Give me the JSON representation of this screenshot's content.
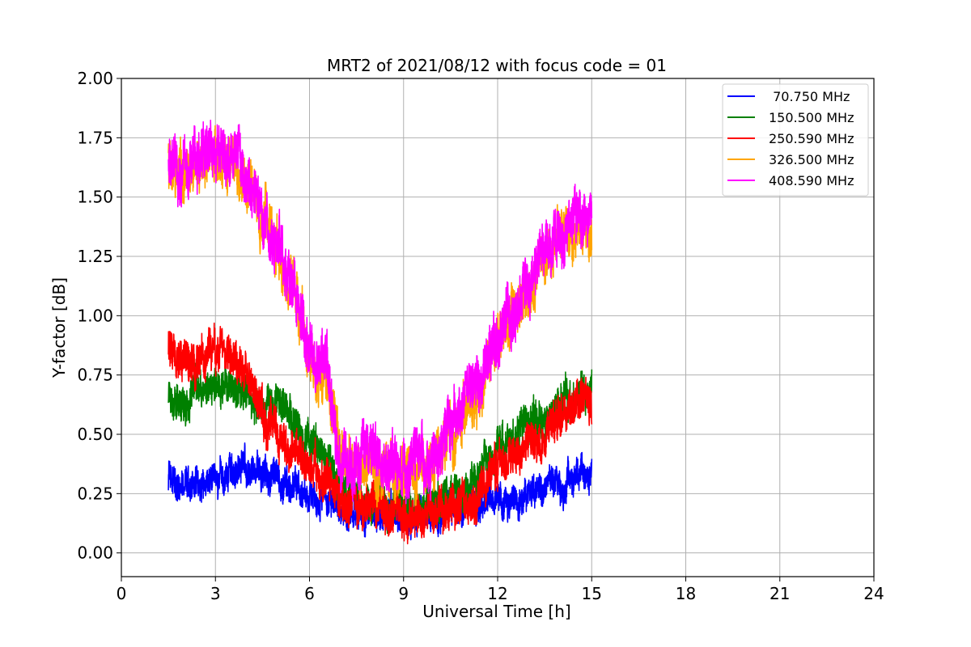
{
  "chart_data": {
    "type": "line",
    "title": "MRT2 of 2021/08/12 with focus code = 01",
    "xlabel": "Universal Time [h]",
    "ylabel": "Y-factor [dB]",
    "xlim": [
      0,
      24
    ],
    "ylim": [
      -0.1,
      2.0
    ],
    "x_ticks": [
      "0",
      "3",
      "6",
      "9",
      "12",
      "15",
      "18",
      "21",
      "24"
    ],
    "y_ticks": [
      "0.00",
      "0.25",
      "0.50",
      "0.75",
      "1.00",
      "1.25",
      "1.50",
      "1.75",
      "2.00"
    ],
    "grid": true,
    "legend_position": "top-right",
    "x_range_of_data": [
      1.5,
      15.0
    ],
    "series": [
      {
        "name": " 70.750 MHz",
        "color": "#0000ff",
        "x": [
          1.5,
          2.0,
          2.5,
          3.0,
          3.5,
          4.0,
          4.5,
          5.0,
          5.5,
          6.0,
          6.5,
          7.0,
          7.5,
          8.0,
          8.5,
          9.0,
          9.5,
          10.0,
          10.5,
          11.0,
          11.5,
          12.0,
          12.5,
          13.0,
          13.5,
          14.0,
          14.5,
          15.0
        ],
        "values": [
          0.3,
          0.29,
          0.3,
          0.32,
          0.34,
          0.35,
          0.33,
          0.3,
          0.27,
          0.25,
          0.23,
          0.2,
          0.17,
          0.16,
          0.15,
          0.16,
          0.17,
          0.17,
          0.18,
          0.19,
          0.2,
          0.22,
          0.24,
          0.26,
          0.28,
          0.29,
          0.31,
          0.34
        ],
        "noise": 0.07
      },
      {
        "name": "150.500 MHz",
        "color": "#008000",
        "x": [
          1.5,
          2.0,
          2.5,
          3.0,
          3.5,
          4.0,
          4.5,
          5.0,
          5.5,
          6.0,
          6.5,
          7.0,
          7.5,
          8.0,
          8.5,
          9.0,
          9.5,
          10.0,
          10.5,
          11.0,
          11.5,
          12.0,
          12.5,
          13.0,
          13.5,
          14.0,
          14.5,
          15.0
        ],
        "values": [
          0.62,
          0.6,
          0.66,
          0.7,
          0.72,
          0.68,
          0.65,
          0.63,
          0.58,
          0.45,
          0.38,
          0.26,
          0.22,
          0.22,
          0.2,
          0.19,
          0.19,
          0.2,
          0.22,
          0.24,
          0.35,
          0.46,
          0.5,
          0.54,
          0.57,
          0.6,
          0.64,
          0.66
        ],
        "noise": 0.08
      },
      {
        "name": "250.590 MHz",
        "color": "#ff0000",
        "x": [
          1.5,
          2.0,
          2.5,
          3.0,
          3.5,
          4.0,
          4.5,
          5.0,
          5.5,
          6.0,
          6.5,
          7.0,
          7.5,
          8.0,
          8.5,
          9.0,
          9.5,
          10.0,
          10.5,
          11.0,
          11.5,
          12.0,
          12.5,
          13.0,
          13.5,
          14.0,
          14.5,
          15.0
        ],
        "values": [
          0.86,
          0.84,
          0.82,
          0.86,
          0.85,
          0.75,
          0.6,
          0.48,
          0.42,
          0.34,
          0.32,
          0.24,
          0.2,
          0.19,
          0.18,
          0.16,
          0.14,
          0.17,
          0.2,
          0.22,
          0.26,
          0.34,
          0.42,
          0.48,
          0.52,
          0.58,
          0.62,
          0.66
        ],
        "noise": 0.09
      },
      {
        "name": "326.500 MHz",
        "color": "#ffa500",
        "x": [
          1.5,
          2.0,
          2.5,
          3.0,
          3.5,
          4.0,
          4.5,
          5.0,
          5.5,
          6.0,
          6.5,
          7.0,
          7.5,
          8.0,
          8.5,
          9.0,
          9.5,
          10.0,
          10.5,
          11.0,
          11.5,
          12.0,
          12.5,
          13.0,
          13.5,
          14.0,
          14.5,
          15.0
        ],
        "values": [
          1.64,
          1.6,
          1.62,
          1.68,
          1.66,
          1.55,
          1.42,
          1.25,
          1.12,
          0.8,
          0.78,
          0.4,
          0.38,
          0.4,
          0.35,
          0.32,
          0.35,
          0.4,
          0.5,
          0.6,
          0.7,
          0.9,
          1.02,
          1.12,
          1.22,
          1.3,
          1.34,
          1.38
        ],
        "noise": 0.11
      },
      {
        "name": "408.590 MHz",
        "color": "#ff00ff",
        "x": [
          1.5,
          2.0,
          2.5,
          3.0,
          3.5,
          4.0,
          4.5,
          5.0,
          5.5,
          6.0,
          6.5,
          7.0,
          7.5,
          8.0,
          8.5,
          9.0,
          9.5,
          10.0,
          10.5,
          11.0,
          11.5,
          12.0,
          12.5,
          13.0,
          13.5,
          14.0,
          14.5,
          15.0
        ],
        "values": [
          1.66,
          1.62,
          1.64,
          1.72,
          1.7,
          1.58,
          1.44,
          1.28,
          1.14,
          0.82,
          0.8,
          0.42,
          0.4,
          0.42,
          0.37,
          0.34,
          0.36,
          0.42,
          0.52,
          0.62,
          0.74,
          0.94,
          1.05,
          1.16,
          1.26,
          1.33,
          1.37,
          1.42
        ],
        "noise": 0.12
      }
    ]
  }
}
